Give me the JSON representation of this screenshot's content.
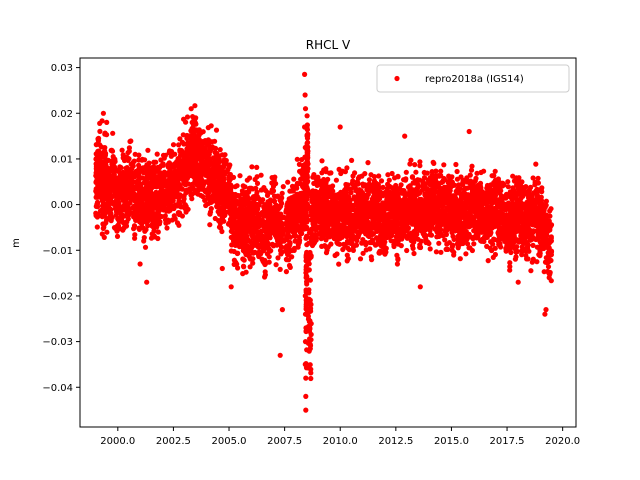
{
  "chart_data": {
    "type": "scatter",
    "title": "RHCL V",
    "xlabel": "",
    "ylabel": "m",
    "xlim": [
      1998.3,
      2020.6
    ],
    "ylim": [
      -0.0487,
      0.0321
    ],
    "xticks": [
      2000.0,
      2002.5,
      2005.0,
      2007.5,
      2010.0,
      2012.5,
      2015.0,
      2017.5,
      2020.0
    ],
    "xtick_labels": [
      "2000.0",
      "2002.5",
      "2005.0",
      "2007.5",
      "2010.0",
      "2012.5",
      "2015.0",
      "2017.5",
      "2020.0"
    ],
    "yticks": [
      -0.04,
      -0.03,
      -0.02,
      -0.01,
      0.0,
      0.01,
      0.02,
      0.03
    ],
    "ytick_labels": [
      "−0.04",
      "−0.03",
      "−0.02",
      "−0.01",
      "0.00",
      "0.01",
      "0.02",
      "0.03"
    ],
    "grid": false,
    "legend_position": "top-right",
    "series": [
      {
        "name": "repro2018a (IGS14)",
        "color": "#ff0000",
        "marker": "circle",
        "x": [
          1999.0,
          1999.1,
          1999.3,
          1999.4,
          1999.5,
          1999.7,
          1999.9,
          2000.1,
          2000.3,
          2000.5,
          2000.7,
          2000.9,
          2001.1,
          2001.3,
          2001.5,
          2001.7,
          2001.9,
          2002.1,
          2002.3,
          2002.5,
          2002.7,
          2002.9,
          2003.1,
          2003.3,
          2003.4,
          2003.5,
          2003.7,
          2003.9,
          2004.1,
          2004.3,
          2004.5,
          2004.7,
          2004.9,
          2005.1,
          2005.3,
          2005.5,
          2005.7,
          2005.9,
          2006.1,
          2006.3,
          2006.5,
          2006.7,
          2006.9,
          2007.1,
          2007.3,
          2007.6,
          2007.8,
          2008.0,
          2008.2,
          2008.4,
          2008.45,
          2008.5,
          2008.55,
          2008.7,
          2008.9,
          2009.1,
          2009.3,
          2009.5,
          2009.7,
          2009.9,
          2010.1,
          2010.3,
          2010.5,
          2010.7,
          2010.9,
          2011.1,
          2011.3,
          2011.5,
          2011.7,
          2011.9,
          2012.1,
          2012.3,
          2012.5,
          2012.7,
          2012.9,
          2013.1,
          2013.3,
          2013.5,
          2013.7,
          2013.9,
          2014.1,
          2014.3,
          2014.5,
          2014.7,
          2014.9,
          2015.1,
          2015.3,
          2015.5,
          2015.7,
          2015.9,
          2016.1,
          2016.3,
          2016.5,
          2016.7,
          2016.9,
          2017.1,
          2017.3,
          2017.5,
          2017.7,
          2017.9,
          2018.1,
          2018.3,
          2018.5,
          2018.7,
          2018.9,
          2019.1,
          2019.3
        ],
        "y": [
          0.004,
          0.008,
          0.002,
          0.006,
          0.003,
          0.005,
          0.001,
          0.003,
          0.002,
          0.004,
          0.001,
          0.002,
          0.0,
          0.003,
          0.001,
          0.002,
          0.004,
          0.003,
          0.005,
          0.004,
          0.006,
          0.007,
          0.009,
          0.011,
          0.012,
          0.01,
          0.008,
          0.007,
          0.006,
          0.005,
          0.004,
          0.003,
          0.002,
          -0.003,
          -0.004,
          -0.005,
          -0.003,
          -0.004,
          -0.002,
          -0.005,
          -0.006,
          -0.004,
          -0.003,
          -0.004,
          -0.006,
          -0.005,
          -0.003,
          -0.002,
          0.001,
          0.004,
          -0.012,
          0.01,
          -0.02,
          -0.002,
          -0.001,
          0.0,
          -0.002,
          -0.001,
          -0.003,
          -0.002,
          -0.001,
          -0.003,
          -0.002,
          -0.001,
          -0.002,
          -0.003,
          -0.002,
          -0.001,
          -0.003,
          -0.004,
          -0.002,
          -0.001,
          -0.003,
          -0.002,
          -0.001,
          0.0,
          -0.001,
          -0.002,
          -0.001,
          0.0,
          0.001,
          -0.001,
          0.0,
          -0.002,
          -0.001,
          -0.002,
          -0.003,
          -0.002,
          -0.001,
          0.0,
          -0.001,
          -0.002,
          -0.003,
          -0.002,
          -0.001,
          -0.002,
          -0.003,
          -0.004,
          -0.003,
          -0.002,
          -0.003,
          -0.004,
          -0.003,
          -0.002,
          -0.004,
          -0.006,
          -0.008
        ],
        "spread": [
          0.008,
          0.009,
          0.008,
          0.009,
          0.008,
          0.008,
          0.008,
          0.008,
          0.008,
          0.008,
          0.008,
          0.008,
          0.008,
          0.008,
          0.008,
          0.008,
          0.008,
          0.008,
          0.008,
          0.008,
          0.008,
          0.008,
          0.008,
          0.008,
          0.008,
          0.008,
          0.008,
          0.008,
          0.008,
          0.008,
          0.008,
          0.008,
          0.008,
          0.008,
          0.009,
          0.009,
          0.009,
          0.009,
          0.008,
          0.008,
          0.009,
          0.009,
          0.008,
          0.008,
          0.008,
          0.008,
          0.008,
          0.008,
          0.008,
          0.008,
          0.02,
          0.01,
          0.02,
          0.008,
          0.008,
          0.008,
          0.008,
          0.008,
          0.008,
          0.008,
          0.008,
          0.008,
          0.008,
          0.008,
          0.008,
          0.008,
          0.008,
          0.008,
          0.008,
          0.008,
          0.008,
          0.008,
          0.008,
          0.008,
          0.008,
          0.008,
          0.008,
          0.008,
          0.008,
          0.008,
          0.008,
          0.008,
          0.008,
          0.008,
          0.008,
          0.008,
          0.008,
          0.008,
          0.008,
          0.008,
          0.008,
          0.008,
          0.008,
          0.008,
          0.008,
          0.008,
          0.008,
          0.008,
          0.008,
          0.008,
          0.008,
          0.008,
          0.008,
          0.008,
          0.008,
          0.008,
          0.008
        ],
        "outliers": [
          [
            1999.35,
            0.02
          ],
          [
            1999.5,
            0.018
          ],
          [
            2003.3,
            0.021
          ],
          [
            2003.5,
            0.019
          ],
          [
            2007.3,
            -0.033
          ],
          [
            2007.4,
            -0.023
          ],
          [
            2008.4,
            0.0285
          ],
          [
            2008.42,
            0.024
          ],
          [
            2008.44,
            0.021
          ],
          [
            2008.45,
            -0.045
          ],
          [
            2008.45,
            -0.042
          ],
          [
            2008.45,
            -0.038
          ],
          [
            2008.43,
            -0.035
          ],
          [
            2008.44,
            -0.03
          ],
          [
            2008.46,
            -0.027
          ],
          [
            2008.44,
            -0.024
          ],
          [
            2008.43,
            -0.02
          ],
          [
            2008.47,
            -0.016
          ],
          [
            2008.4,
            0.017
          ],
          [
            2010.0,
            0.017
          ],
          [
            2012.9,
            0.015
          ],
          [
            2015.8,
            0.016
          ],
          [
            2019.2,
            -0.024
          ],
          [
            2019.25,
            -0.023
          ],
          [
            2001.0,
            -0.013
          ],
          [
            2001.3,
            -0.017
          ],
          [
            2004.7,
            -0.014
          ],
          [
            2005.1,
            -0.018
          ],
          [
            2013.6,
            -0.018
          ],
          [
            2018.0,
            -0.017
          ]
        ]
      }
    ]
  }
}
